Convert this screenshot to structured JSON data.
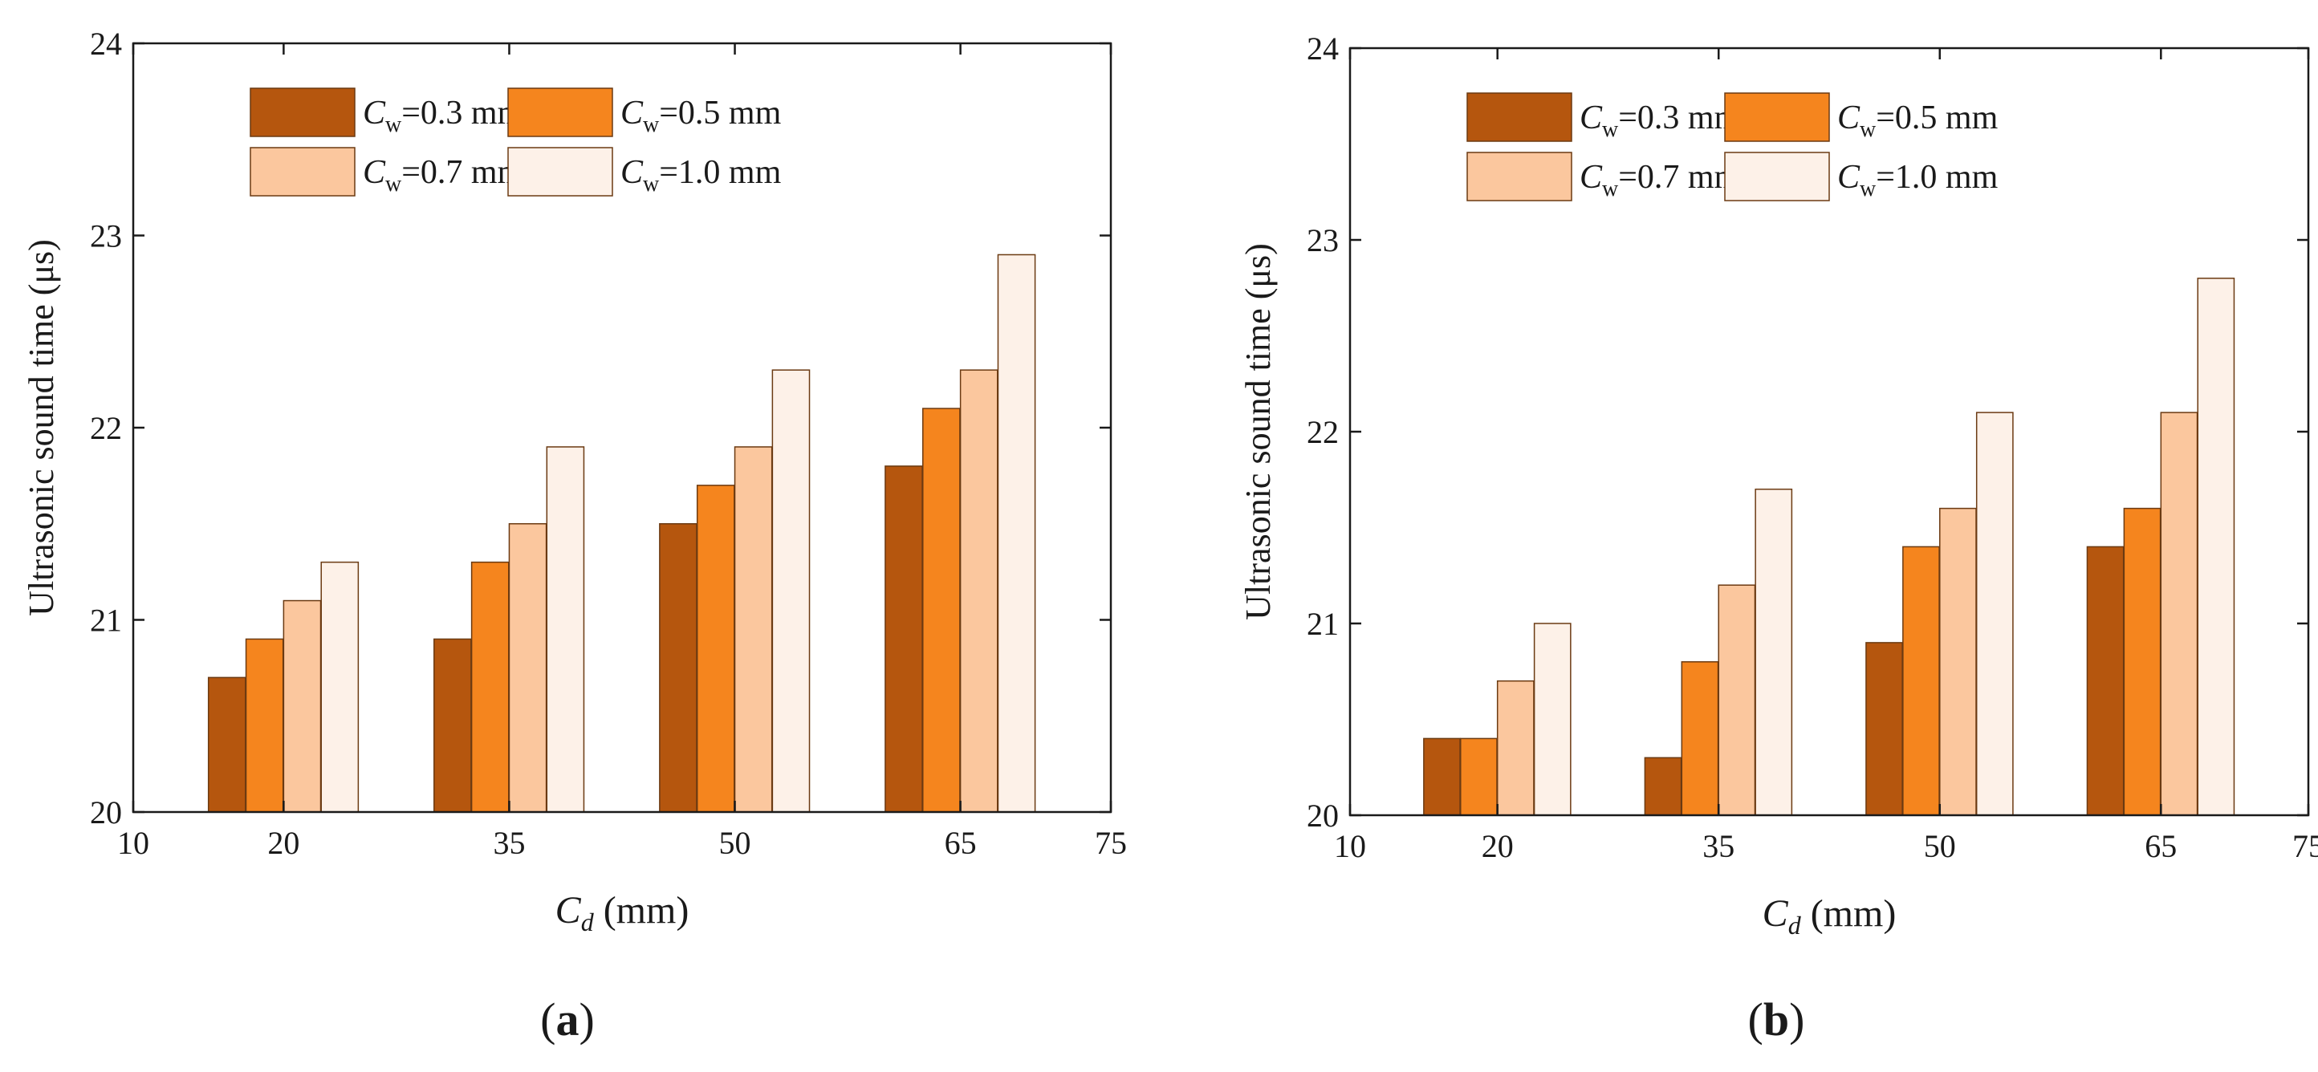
{
  "chart_data": [
    {
      "type": "bar",
      "panel_label": "(a)",
      "categories": [
        20,
        35,
        50,
        65
      ],
      "series": [
        {
          "name": "0.3",
          "color": "#b5560e",
          "values": [
            20.7,
            20.9,
            21.5,
            21.8
          ]
        },
        {
          "name": "0.5",
          "color": "#f5851e",
          "values": [
            20.9,
            21.3,
            21.7,
            22.1
          ]
        },
        {
          "name": "0.7",
          "color": "#fbc79e",
          "values": [
            21.1,
            21.5,
            21.9,
            22.3
          ]
        },
        {
          "name": "1.0",
          "color": "#fdf1e8",
          "values": [
            21.3,
            21.9,
            22.3,
            22.9
          ]
        }
      ],
      "legend_prefix": "C",
      "legend_subscript": "w",
      "legend_unit": "mm",
      "ylabel": "Ultrasonic sound time (μs)",
      "xlabel_symbol": "C",
      "xlabel_subscript": "d",
      "xlabel_unit": "(mm)",
      "xlim": [
        10,
        75
      ],
      "ylim": [
        20,
        24
      ],
      "xticks": [
        10,
        20,
        35,
        50,
        65,
        75
      ],
      "yticks": [
        20,
        21,
        22,
        23,
        24
      ],
      "legend_position": "top"
    },
    {
      "type": "bar",
      "panel_label": "(b)",
      "categories": [
        20,
        35,
        50,
        65
      ],
      "series": [
        {
          "name": "0.3",
          "color": "#b5560e",
          "values": [
            20.4,
            20.3,
            20.9,
            21.4
          ]
        },
        {
          "name": "0.5",
          "color": "#f5851e",
          "values": [
            20.4,
            20.8,
            21.4,
            21.6
          ]
        },
        {
          "name": "0.7",
          "color": "#fbc79e",
          "values": [
            20.7,
            21.2,
            21.6,
            22.1
          ]
        },
        {
          "name": "1.0",
          "color": "#fdf1e8",
          "values": [
            21.0,
            21.7,
            22.1,
            22.8
          ]
        }
      ],
      "legend_prefix": "C",
      "legend_subscript": "w",
      "legend_unit": "mm",
      "ylabel": "Ultrasonic sound time (μs)",
      "xlabel_symbol": "C",
      "xlabel_subscript": "d",
      "xlabel_unit": "(mm)",
      "xlim": [
        10,
        75
      ],
      "ylim": [
        20,
        24
      ],
      "xticks": [
        10,
        20,
        35,
        50,
        65,
        75
      ],
      "yticks": [
        20,
        21,
        22,
        23,
        24
      ],
      "legend_position": "top"
    }
  ]
}
